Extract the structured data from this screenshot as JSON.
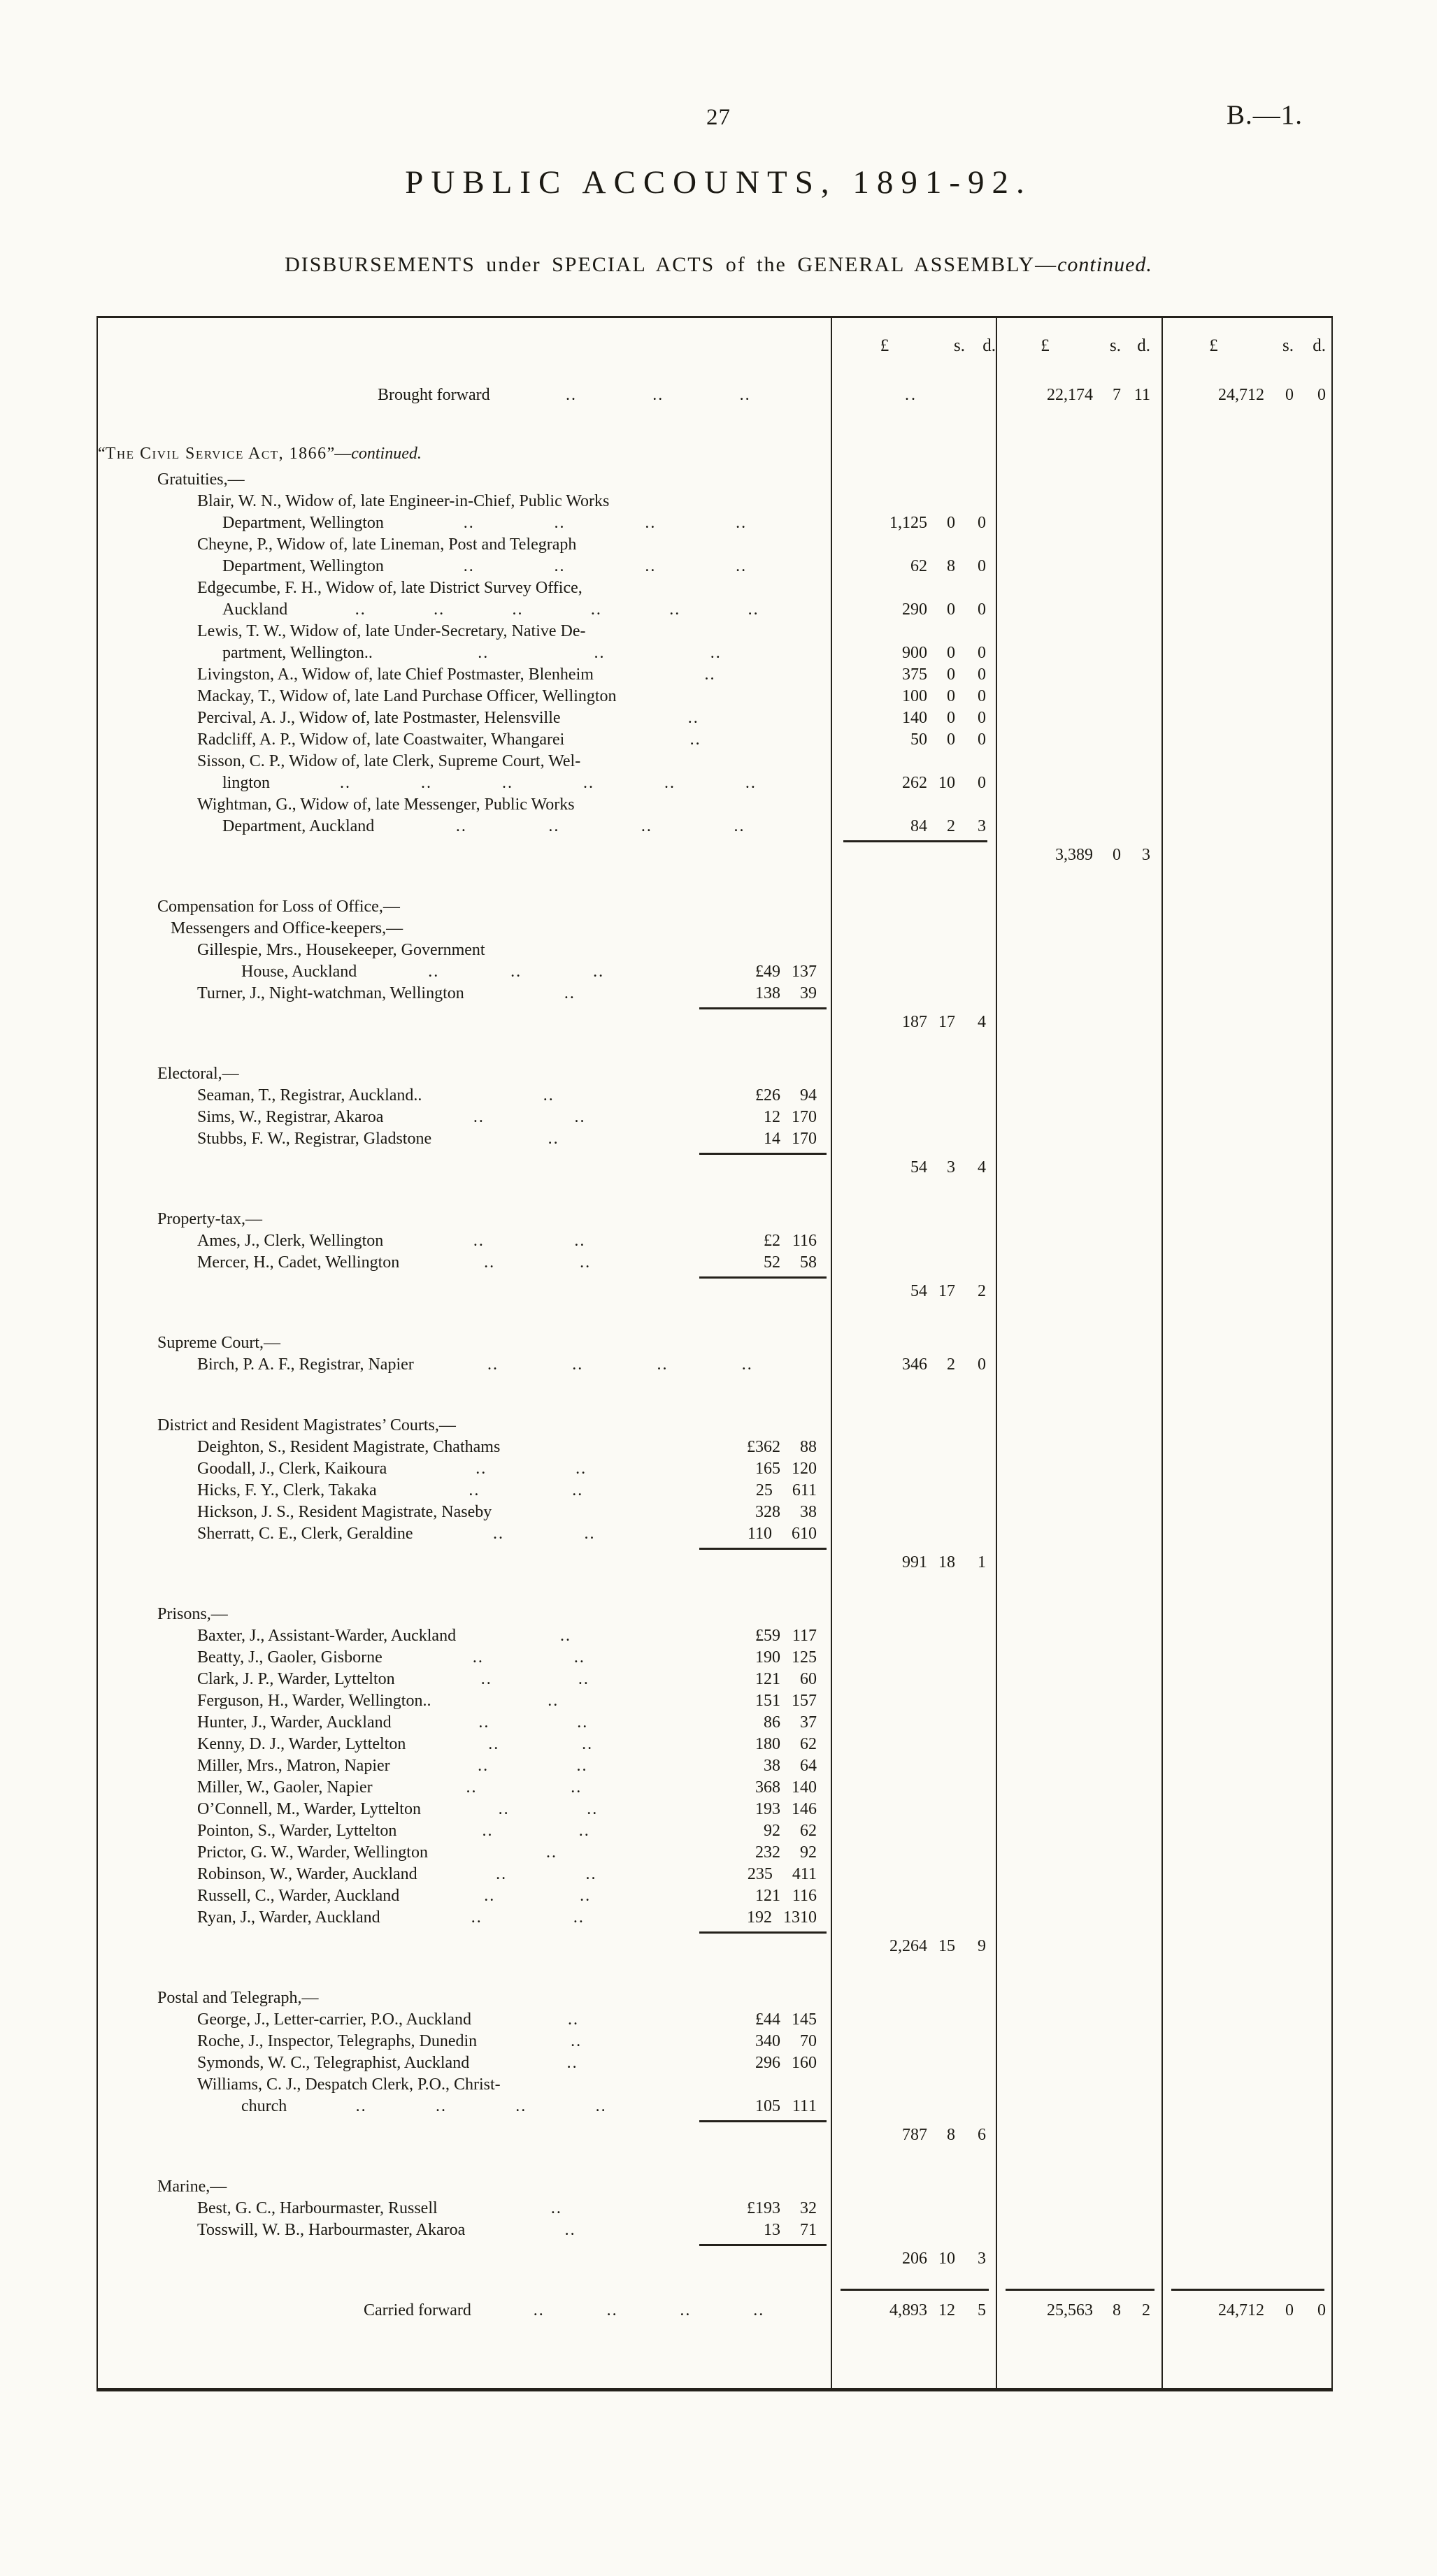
{
  "page": {
    "number": "27",
    "reference": "B.—1.",
    "title": "PUBLIC ACCOUNTS, 1891-92.",
    "subtitle_main": "DISBURSEMENTS under SPECIAL ACTS of the GENERAL ASSEMBLY—",
    "subtitle_cont": "continued.",
    "ink_color": "#1b1913",
    "paper_color": "#fbfaf5"
  },
  "table": {
    "money_header": {
      "pounds": "£",
      "shillings": "s.",
      "pence": "d."
    },
    "leader_glyph": "..",
    "rows": [
      {
        "t": "bf",
        "d": "Brought forward",
        "ld": 3,
        "a1": "..",
        "a2": "22,174 7 11",
        "a3": "24,712 0 0"
      },
      {
        "t": "gap",
        "h": 36
      },
      {
        "t": "act",
        "q1": "“",
        "sc": "The Civil Service Act, 1866",
        "q2": "”—",
        "it": "continued."
      },
      {
        "d": "Gratuities,—",
        "i": 1
      },
      {
        "d": "Blair, W. N., Widow of, late Engineer-in-Chief, Public Works",
        "i": 3
      },
      {
        "d": "Department, Wellington",
        "i": 4,
        "ld": 4,
        "a1": "1,125 0 0"
      },
      {
        "d": "Cheyne, P., Widow of, late Lineman, Post and Telegraph",
        "i": 3
      },
      {
        "d": "Department, Wellington",
        "i": 4,
        "ld": 4,
        "a1": "62 8 0"
      },
      {
        "d": "Edgecumbe, F. H., Widow of, late District Survey Office,",
        "i": 3
      },
      {
        "d": "Auckland",
        "i": 4,
        "ld": 6,
        "a1": "290 0 0"
      },
      {
        "d": "Lewis, T. W., Widow of, late Under-Secretary, Native De-",
        "i": 3
      },
      {
        "d": "partment, Wellington..",
        "i": 4,
        "ld": 3,
        "a1": "900 0 0"
      },
      {
        "d": "Livingston, A., Widow of, late Chief Postmaster, Blenheim",
        "i": 3,
        "ld": 1,
        "a1": "375 0 0"
      },
      {
        "d": "Mackay, T., Widow of, late Land Purchase Officer, Wellington",
        "i": 3,
        "a1": "100 0 0"
      },
      {
        "d": "Percival, A. J., Widow of, late Postmaster, Helensville",
        "i": 3,
        "ld": 1,
        "a1": "140 0 0"
      },
      {
        "d": "Radcliff, A. P., Widow of, late Coastwaiter, Whangarei",
        "i": 3,
        "ld": 1,
        "a1": "50 0 0"
      },
      {
        "d": "Sisson, C. P., Widow of, late Clerk, Supreme Court, Wel-",
        "i": 3
      },
      {
        "d": "lington",
        "i": 4,
        "ld": 6,
        "a1": "262 10 0"
      },
      {
        "d": "Wightman, G., Widow of, late Messenger, Public Works",
        "i": 3
      },
      {
        "d": "Department, Auckland",
        "i": 4,
        "ld": 4,
        "a1": "84 2 3"
      },
      {
        "t": "sum",
        "r1": true,
        "a2": "3,389 0 3"
      },
      {
        "t": "gap"
      },
      {
        "d": "Compensation for Loss of Office,—",
        "i": 1
      },
      {
        "d": "Messengers and Office-keepers,—",
        "i": 2
      },
      {
        "d": "Gillespie, Mrs., Housekeeper, Government",
        "i": 3
      },
      {
        "d": "House, Auckland",
        "i": 5,
        "ld": 3,
        "a0": "£49 13 7"
      },
      {
        "d": "Turner, J., Night-watchman, Wellington",
        "i": 3,
        "ld": 1,
        "a0": "138 3 9"
      },
      {
        "t": "sum",
        "r0": true,
        "a1": "187 17 4"
      },
      {
        "t": "gap"
      },
      {
        "d": "Electoral,—",
        "i": 1
      },
      {
        "d": "Seaman, T., Registrar, Auckland..",
        "i": 3,
        "ld": 1,
        "a0": "£26 9 4"
      },
      {
        "d": "Sims, W., Registrar, Akaroa",
        "i": 3,
        "ld": 2,
        "a0": "12 17 0"
      },
      {
        "d": "Stubbs, F. W., Registrar, Gladstone",
        "i": 3,
        "ld": 1,
        "a0": "14 17 0"
      },
      {
        "t": "sum",
        "r0": true,
        "a1": "54 3 4"
      },
      {
        "t": "gap"
      },
      {
        "d": "Property-tax,—",
        "i": 1
      },
      {
        "d": "Ames, J., Clerk, Wellington",
        "i": 3,
        "ld": 2,
        "a0": "£2 11 6"
      },
      {
        "d": "Mercer, H., Cadet, Wellington",
        "i": 3,
        "ld": 2,
        "a0": "52 5 8"
      },
      {
        "t": "sum",
        "r0": true,
        "a1": "54 17 2"
      },
      {
        "t": "gap"
      },
      {
        "d": "Supreme Court,—",
        "i": 1
      },
      {
        "d": "Birch, P. A. F., Registrar, Napier",
        "i": 3,
        "ld": 4,
        "a1": "346 2 0"
      },
      {
        "t": "gap",
        "h": 56
      },
      {
        "d": "District and Resident Magistrates’ Courts,—",
        "i": 1
      },
      {
        "d": "Deighton, S., Resident Magistrate, Chathams",
        "i": 3,
        "a0": "£362 8 8"
      },
      {
        "d": "Goodall, J., Clerk, Kaikoura",
        "i": 3,
        "ld": 2,
        "a0": "165 12 0"
      },
      {
        "d": "Hicks, F. Y., Clerk, Takaka",
        "i": 3,
        "ld": 2,
        "a0": "25 6 11"
      },
      {
        "d": "Hickson, J. S., Resident Magistrate, Naseby",
        "i": 3,
        "a0": "328 3 8"
      },
      {
        "d": "Sherratt, C. E., Clerk, Geraldine",
        "i": 3,
        "ld": 2,
        "a0": "110 6 10"
      },
      {
        "t": "sum",
        "r0": true,
        "a1": "991 18 1"
      },
      {
        "t": "gap"
      },
      {
        "d": "Prisons,—",
        "i": 1
      },
      {
        "d": "Baxter, J., Assistant-Warder, Auckland",
        "i": 3,
        "ld": 1,
        "a0": "£59 11 7"
      },
      {
        "d": "Beatty, J., Gaoler, Gisborne",
        "i": 3,
        "ld": 2,
        "a0": "190 12 5"
      },
      {
        "d": "Clark, J. P., Warder, Lyttelton",
        "i": 3,
        "ld": 2,
        "a0": "121 6 0"
      },
      {
        "d": "Ferguson, H., Warder, Wellington..",
        "i": 3,
        "ld": 1,
        "a0": "151 15 7"
      },
      {
        "d": "Hunter, J., Warder, Auckland",
        "i": 3,
        "ld": 2,
        "a0": "86 3 7"
      },
      {
        "d": "Kenny, D. J., Warder, Lyttelton",
        "i": 3,
        "ld": 2,
        "a0": "180 6 2"
      },
      {
        "d": "Miller, Mrs., Matron, Napier",
        "i": 3,
        "ld": 2,
        "a0": "38 6 4"
      },
      {
        "d": "Miller, W., Gaoler, Napier",
        "i": 3,
        "ld": 2,
        "a0": "368 14 0"
      },
      {
        "d": "O’Connell, M., Warder, Lyttelton",
        "i": 3,
        "ld": 2,
        "a0": "193 14 6"
      },
      {
        "d": "Pointon, S., Warder, Lyttelton",
        "i": 3,
        "ld": 2,
        "a0": "92 6 2"
      },
      {
        "d": "Prictor, G. W., Warder, Wellington",
        "i": 3,
        "ld": 1,
        "a0": "232 9 2"
      },
      {
        "d": "Robinson, W., Warder, Auckland",
        "i": 3,
        "ld": 2,
        "a0": "235 4 11"
      },
      {
        "d": "Russell, C., Warder, Auckland",
        "i": 3,
        "ld": 2,
        "a0": "121 11 6"
      },
      {
        "d": "Ryan, J., Warder, Auckland",
        "i": 3,
        "ld": 2,
        "a0": "192 13 10"
      },
      {
        "t": "sum",
        "r0": true,
        "a1": "2,264 15 9"
      },
      {
        "t": "gap"
      },
      {
        "d": "Postal and Telegraph,—",
        "i": 1
      },
      {
        "d": "George, J., Letter-carrier, P.O., Auckland",
        "i": 3,
        "ld": 1,
        "a0": "£44 14 5"
      },
      {
        "d": "Roche, J., Inspector, Telegraphs, Dunedin",
        "i": 3,
        "ld": 1,
        "a0": "340 7 0"
      },
      {
        "d": "Symonds, W. C., Telegraphist, Auckland",
        "i": 3,
        "ld": 1,
        "a0": "296 16 0"
      },
      {
        "d": "Williams, C. J., Despatch Clerk, P.O., Christ-",
        "i": 3
      },
      {
        "d": "church",
        "i": 5,
        "ld": 4,
        "a0": "105 11 1"
      },
      {
        "t": "sum",
        "r0": true,
        "a1": "787 8 6"
      },
      {
        "t": "gap"
      },
      {
        "d": "Marine,—",
        "i": 1
      },
      {
        "d": "Best, G. C., Harbourmaster, Russell",
        "i": 3,
        "ld": 1,
        "a0": "£193 3 2"
      },
      {
        "d": "Tosswill, W. B., Harbourmaster, Akaroa",
        "i": 3,
        "ld": 1,
        "a0": "13 7 1"
      },
      {
        "t": "sum",
        "r0": true,
        "a1": "206 10 3"
      },
      {
        "t": "gap",
        "h": 12
      },
      {
        "t": "cf",
        "d": "Carried forward",
        "ld": 4,
        "a1": "4,893 12 5",
        "a2": "25,563 8 2",
        "a3": "24,712 0 0"
      },
      {
        "t": "gap",
        "h": 58
      }
    ]
  }
}
